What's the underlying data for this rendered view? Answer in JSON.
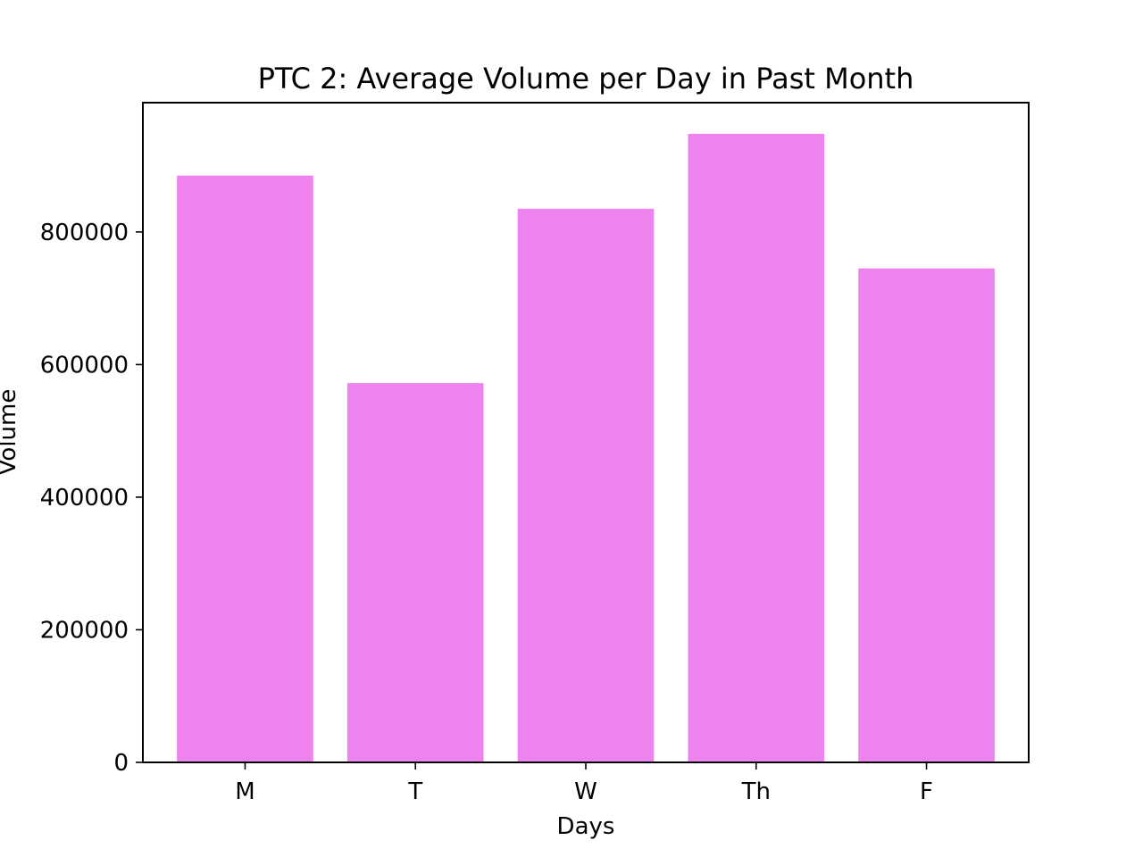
{
  "chart_data": {
    "type": "bar",
    "title": "PTC 2: Average Volume per Day in Past Month",
    "xlabel": "Days",
    "ylabel": "Volume",
    "categories": [
      "M",
      "T",
      "W",
      "Th",
      "F"
    ],
    "values": [
      885000,
      572000,
      835000,
      948000,
      745000
    ],
    "ylim": [
      0,
      995000
    ],
    "yticks": [
      0,
      200000,
      400000,
      600000,
      800000
    ],
    "ytick_labels": [
      "0",
      "200000",
      "400000",
      "600000",
      "800000"
    ],
    "bar_color": "#ee82ee",
    "grid": false,
    "legend": false
  }
}
